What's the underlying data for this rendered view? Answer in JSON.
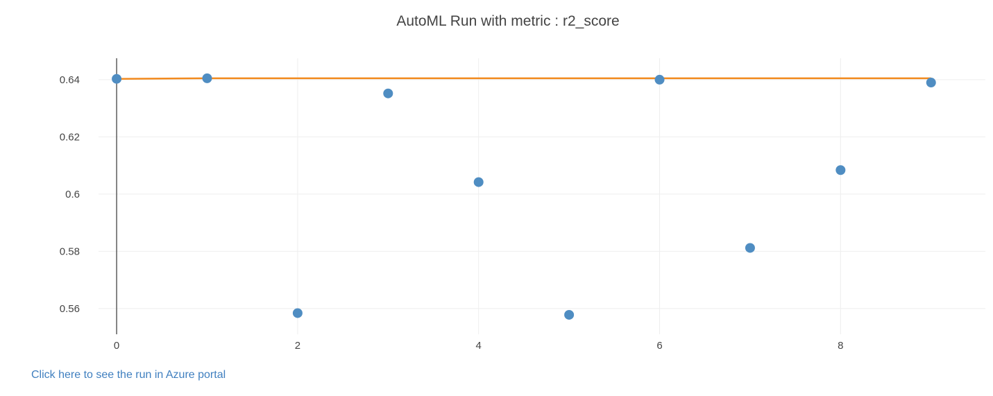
{
  "chart_data": {
    "type": "scatter",
    "title": "AutoML Run with metric : r2_score",
    "xlabel": "",
    "ylabel": "",
    "xlim": [
      -0.2,
      9.6
    ],
    "ylim": [
      0.551,
      0.6475
    ],
    "x_ticks": [
      0,
      2,
      4,
      6,
      8
    ],
    "y_ticks": [
      0.56,
      0.58,
      0.6,
      0.62,
      0.64
    ],
    "y_tick_labels": [
      "0.56",
      "0.58",
      "0.6",
      "0.62",
      "0.64"
    ],
    "grid": true,
    "series": [
      {
        "type": "scatter",
        "color": "#4f8dc2",
        "x": [
          0,
          1,
          2,
          3,
          4,
          5,
          6,
          7,
          8,
          9
        ],
        "y": [
          0.6403,
          0.6405,
          0.5584,
          0.6352,
          0.6042,
          0.5578,
          0.64,
          0.5812,
          0.6084,
          0.639
        ]
      },
      {
        "type": "line",
        "color": "#f28a1e",
        "x": [
          0,
          1,
          2,
          3,
          4,
          5,
          6,
          7,
          8,
          9
        ],
        "y": [
          0.6403,
          0.6405,
          0.6405,
          0.6405,
          0.6405,
          0.6405,
          0.6405,
          0.6405,
          0.6405,
          0.6405
        ]
      }
    ]
  },
  "link": {
    "label": "Click here to see the run in Azure portal"
  },
  "colors": {
    "grid": "#eeeeee",
    "axis_zero": "#444444",
    "text": "#444444",
    "link": "#3f7fbf"
  }
}
